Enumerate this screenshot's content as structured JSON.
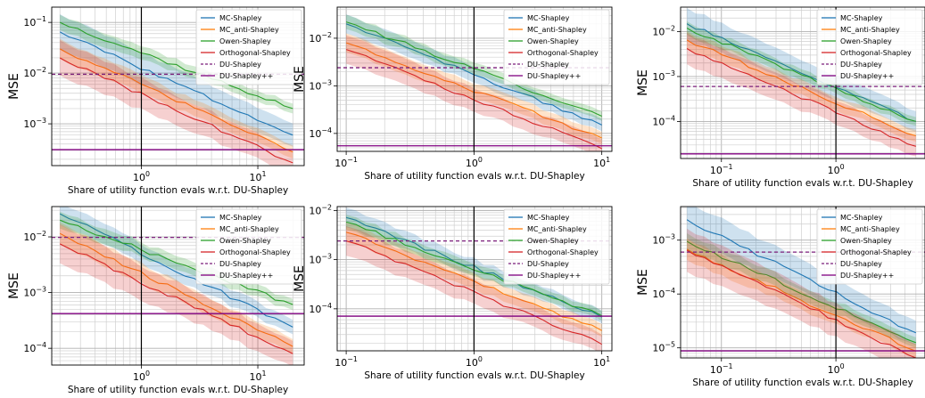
{
  "series_colors": {
    "MC-Shapley": "#1f77b4",
    "MC_anti-Shapley": "#ff7f0e",
    "Owen-Shapley": "#2ca02c",
    "Orthogonal-Shapley": "#d62728",
    "DU-Shapley": "#7b1f7b",
    "DU-Shapley++": "#800080"
  },
  "legend_labels": [
    "MC-Shapley",
    "MC_anti-Shapley",
    "Owen-Shapley",
    "Orthogonal-Shapley",
    "DU-Shapley",
    "DU-Shapley++"
  ],
  "chart_data": [
    {
      "type": "line",
      "xscale": "log",
      "yscale": "log",
      "xlim": [
        0.17,
        25
      ],
      "ylim": [
        0.00015,
        0.2
      ],
      "xticks": [
        {
          "v": 1,
          "label": "10^0"
        },
        {
          "v": 10,
          "label": "10^1"
        }
      ],
      "yticks": [
        {
          "v": 0.001,
          "label": "10^-3"
        },
        {
          "v": 0.01,
          "label": "10^-2"
        },
        {
          "v": 0.1,
          "label": "10^-1"
        }
      ],
      "xlabel": "Share of utility function evals w.r.t. DU-Shapley",
      "ylabel": "MSE",
      "grid": true,
      "legend": "top-right",
      "vline": 1,
      "x": [
        0.2,
        20
      ],
      "series": [
        {
          "name": "MC-Shapley",
          "values": [
            0.065,
            0.0006
          ],
          "band": 0.35
        },
        {
          "name": "MC_anti-Shapley",
          "values": [
            0.03,
            0.00028
          ],
          "band": 0.2
        },
        {
          "name": "Owen-Shapley",
          "values": [
            0.1,
            0.002
          ],
          "band": 0.15
        },
        {
          "name": "Orthogonal-Shapley",
          "values": [
            0.02,
            0.00017
          ],
          "band": 0.35
        }
      ],
      "hlines": [
        {
          "name": "DU-Shapley",
          "value": 0.0095,
          "dashed": true
        },
        {
          "name": "DU-Shapley++",
          "value": 0.00031,
          "dashed": false
        }
      ]
    },
    {
      "type": "line",
      "xscale": "log",
      "yscale": "log",
      "xlim": [
        0.085,
        12
      ],
      "ylim": [
        4.2e-05,
        0.045
      ],
      "xticks": [
        {
          "v": 0.1,
          "label": "10^-1"
        },
        {
          "v": 1,
          "label": "10^0"
        },
        {
          "v": 10,
          "label": "10^1"
        }
      ],
      "yticks": [
        {
          "v": 0.0001,
          "label": "10^-4"
        },
        {
          "v": 0.001,
          "label": "10^-3"
        },
        {
          "v": 0.01,
          "label": "10^-2"
        }
      ],
      "xlabel": "Share of utility function evals w.r.t. DU-Shapley",
      "ylabel": "MSE",
      "grid": true,
      "legend": "top-right",
      "vline": 1,
      "x": [
        0.1,
        10
      ],
      "series": [
        {
          "name": "MC-Shapley",
          "values": [
            0.02,
            0.00015
          ],
          "band": 0.2
        },
        {
          "name": "MC_anti-Shapley",
          "values": [
            0.008,
            8e-05
          ],
          "band": 0.2
        },
        {
          "name": "Owen-Shapley",
          "values": [
            0.022,
            0.00023
          ],
          "band": 0.15
        },
        {
          "name": "Orthogonal-Shapley",
          "values": [
            0.0058,
            4.8e-05
          ],
          "band": 0.3
        }
      ],
      "hlines": [
        {
          "name": "DU-Shapley",
          "value": 0.0024,
          "dashed": true
        },
        {
          "name": "DU-Shapley++",
          "value": 5.5e-05,
          "dashed": false
        }
      ]
    },
    {
      "type": "line",
      "xscale": "log",
      "yscale": "log",
      "xlim": [
        0.044,
        6
      ],
      "ylim": [
        1.5e-05,
        0.035
      ],
      "xticks": [
        {
          "v": 0.1,
          "label": "10^-1"
        },
        {
          "v": 1,
          "label": "10^0"
        }
      ],
      "yticks": [
        {
          "v": 0.0001,
          "label": "10^-4"
        },
        {
          "v": 0.001,
          "label": "10^-3"
        },
        {
          "v": 0.01,
          "label": "10^-2"
        }
      ],
      "xlabel": "Share of utility function evals w.r.t. DU-Shapley",
      "ylabel": "MSE",
      "grid": true,
      "legend": "top-right",
      "vline": 1,
      "x": [
        0.05,
        5
      ],
      "series": [
        {
          "name": "MC-Shapley",
          "values": [
            0.015,
            0.0001
          ],
          "band": 0.35
        },
        {
          "name": "MC_anti-Shapley",
          "values": [
            0.0065,
            4.8e-05
          ],
          "band": 0.2
        },
        {
          "name": "Owen-Shapley",
          "values": [
            0.012,
            0.0001
          ],
          "band": 0.15
        },
        {
          "name": "Orthogonal-Shapley",
          "values": [
            0.0042,
            2.8e-05
          ],
          "band": 0.35
        }
      ],
      "hlines": [
        {
          "name": "DU-Shapley",
          "value": 0.0006,
          "dashed": true
        },
        {
          "name": "DU-Shapley++",
          "value": 1.9e-05,
          "dashed": false
        }
      ]
    },
    {
      "type": "line",
      "xscale": "log",
      "yscale": "log",
      "xlim": [
        0.17,
        25
      ],
      "ylim": [
        5e-05,
        0.035
      ],
      "xticks": [
        {
          "v": 1,
          "label": "10^0"
        },
        {
          "v": 10,
          "label": "10^1"
        }
      ],
      "yticks": [
        {
          "v": 0.0001,
          "label": "10^-4"
        },
        {
          "v": 0.001,
          "label": "10^-3"
        },
        {
          "v": 0.01,
          "label": "10^-2"
        }
      ],
      "xlabel": "Share of utility function evals w.r.t. DU-Shapley",
      "ylabel": "MSE",
      "grid": true,
      "legend": "top-right",
      "vline": 1,
      "x": [
        0.2,
        20
      ],
      "series": [
        {
          "name": "MC-Shapley",
          "values": [
            0.026,
            0.00024
          ],
          "band": 0.2
        },
        {
          "name": "MC_anti-Shapley",
          "values": [
            0.0115,
            0.000108
          ],
          "band": 0.2
        },
        {
          "name": "Owen-Shapley",
          "values": [
            0.02,
            0.00061
          ],
          "band": 0.15
        },
        {
          "name": "Orthogonal-Shapley",
          "values": [
            0.0075,
            8e-05
          ],
          "band": 0.35
        }
      ],
      "hlines": [
        {
          "name": "DU-Shapley",
          "value": 0.0098,
          "dashed": true
        },
        {
          "name": "DU-Shapley++",
          "value": 0.00042,
          "dashed": false
        }
      ]
    },
    {
      "type": "line",
      "xscale": "log",
      "yscale": "log",
      "xlim": [
        0.085,
        12
      ],
      "ylim": [
        1.4e-05,
        0.012
      ],
      "xticks": [
        {
          "v": 0.1,
          "label": "10^-1"
        },
        {
          "v": 1,
          "label": "10^0"
        },
        {
          "v": 10,
          "label": "10^1"
        }
      ],
      "yticks": [
        {
          "v": 0.0001,
          "label": "10^-4"
        },
        {
          "v": 0.001,
          "label": "10^-3"
        },
        {
          "v": 0.01,
          "label": "10^-2"
        }
      ],
      "xlabel": "Share of utility function evals w.r.t. DU-Shapley",
      "ylabel": "MSE",
      "grid": true,
      "legend": "top-right",
      "vline": 1,
      "x": [
        0.1,
        10
      ],
      "series": [
        {
          "name": "MC-Shapley",
          "values": [
            0.0072,
            6.8e-05
          ],
          "band": 0.2
        },
        {
          "name": "MC_anti-Shapley",
          "values": [
            0.0036,
            3.6e-05
          ],
          "band": 0.2
        },
        {
          "name": "Owen-Shapley",
          "values": [
            0.0058,
            7.2e-05
          ],
          "band": 0.15
        },
        {
          "name": "Orthogonal-Shapley",
          "values": [
            0.0024,
            1.9e-05
          ],
          "band": 0.3
        }
      ],
      "hlines": [
        {
          "name": "DU-Shapley",
          "value": 0.0024,
          "dashed": true
        },
        {
          "name": "DU-Shapley++",
          "value": 7.1e-05,
          "dashed": false
        }
      ]
    },
    {
      "type": "line",
      "xscale": "log",
      "yscale": "log",
      "xlim": [
        0.044,
        6
      ],
      "ylim": [
        6.5e-06,
        0.0042
      ],
      "xticks": [
        {
          "v": 0.1,
          "label": "10^-1"
        },
        {
          "v": 1,
          "label": "10^0"
        }
      ],
      "yticks": [
        {
          "v": 1e-05,
          "label": "10^-5"
        },
        {
          "v": 0.0001,
          "label": "10^-4"
        },
        {
          "v": 0.001,
          "label": "10^-3"
        }
      ],
      "xlabel": "Share of utility function evals w.r.t. DU-Shapley",
      "ylabel": "MSE",
      "grid": true,
      "legend": "top-right",
      "vline": 1,
      "x": [
        0.05,
        5
      ],
      "series": [
        {
          "name": "MC-Shapley",
          "values": [
            0.0024,
            1.9e-05
          ],
          "band": 0.35
        },
        {
          "name": "MC_anti-Shapley",
          "values": [
            0.00068,
            8.7e-06
          ],
          "band": 0.2
        },
        {
          "name": "Owen-Shapley",
          "values": [
            0.00095,
            1.25e-05
          ],
          "band": 0.15
        },
        {
          "name": "Orthogonal-Shapley",
          "values": [
            0.00065,
            6.5e-06
          ],
          "band": 0.4
        }
      ],
      "hlines": [
        {
          "name": "DU-Shapley",
          "value": 0.0006,
          "dashed": true
        },
        {
          "name": "DU-Shapley++",
          "value": 8.8e-06,
          "dashed": false
        }
      ]
    }
  ]
}
